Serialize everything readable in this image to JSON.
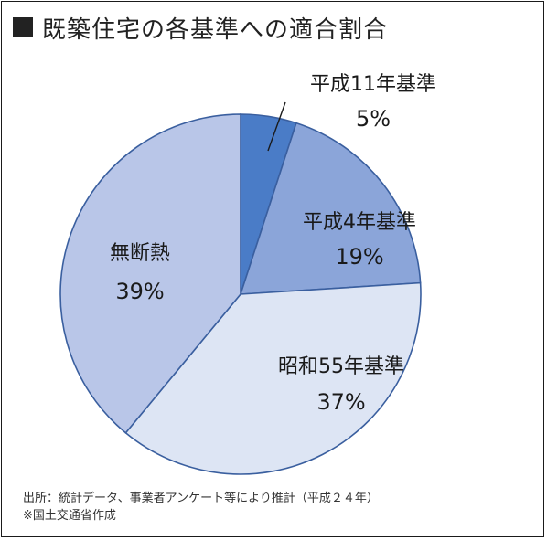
{
  "title": "既築住宅の各基準への適合割合",
  "chart_data": {
    "type": "pie",
    "title": "既築住宅の各基準への適合割合",
    "slices": [
      {
        "label": "平成11年基準",
        "value": 5,
        "value_label": "5%",
        "color": "#4a7cc7"
      },
      {
        "label": "平成4年基準",
        "value": 19,
        "value_label": "19%",
        "color": "#8ba5d9"
      },
      {
        "label": "昭和55年基準",
        "value": 37,
        "value_label": "37%",
        "color": "#dde5f4"
      },
      {
        "label": "無断熱",
        "value": 39,
        "value_label": "39%",
        "color": "#b9c6e8"
      }
    ],
    "start_angle_deg": 0,
    "direction": "clockwise",
    "legend": "none",
    "edge_color": "#3a5f9f"
  },
  "source": {
    "line1": "出所：統計データ、事業者アンケート等により推計（平成２４年）",
    "line2": "※国土交通省作成"
  }
}
